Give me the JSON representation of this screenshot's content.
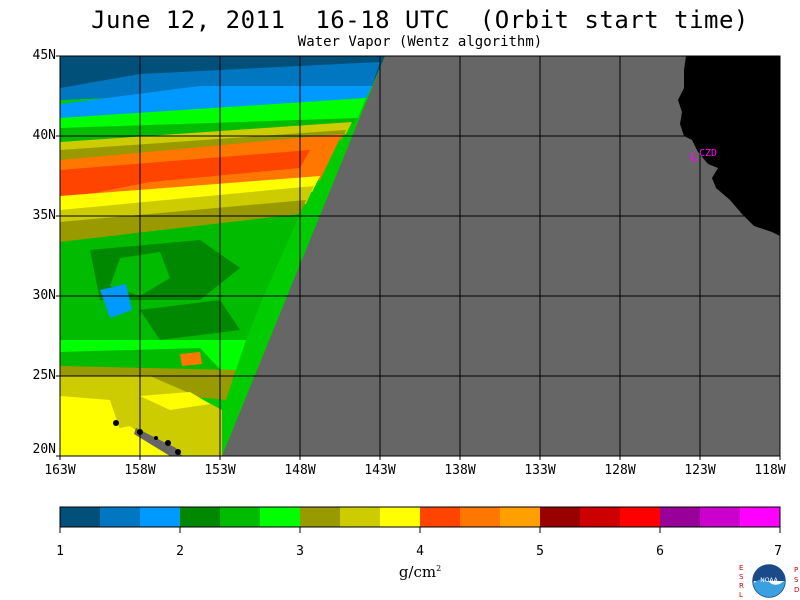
{
  "header": {
    "title": "June 12, 2011  16-18 UTC  (Orbit start time)",
    "subtitle": "Water Vapor (Wentz algorithm)"
  },
  "map": {
    "lat_ticks": [
      "45N",
      "40N",
      "35N",
      "30N",
      "25N",
      "20N"
    ],
    "lon_ticks": [
      "163W",
      "158W",
      "153W",
      "148W",
      "143W",
      "138W",
      "133W",
      "128W",
      "123W",
      "118W"
    ],
    "station_label": "CZD",
    "colors": {
      "no_data": "#666666",
      "land": "#000000",
      "gridline": "#000000",
      "station": "#ff00ff"
    }
  },
  "colorbar": {
    "tick_labels": [
      "1",
      "2",
      "3",
      "4",
      "5",
      "6",
      "7"
    ],
    "units": "g/cm",
    "units_exp": "2",
    "colors": [
      "#00507a",
      "#0077c0",
      "#0099ff",
      "#008800",
      "#00bb00",
      "#00ff00",
      "#999900",
      "#cccc00",
      "#ffff00",
      "#ff4400",
      "#ff7700",
      "#ffa000",
      "#990000",
      "#cc0000",
      "#ff0000",
      "#990099",
      "#cc00cc",
      "#ff00ff"
    ]
  },
  "logo": {
    "left_letters": "ESRL",
    "right_letters": "PSD",
    "text": "NOAA"
  }
}
